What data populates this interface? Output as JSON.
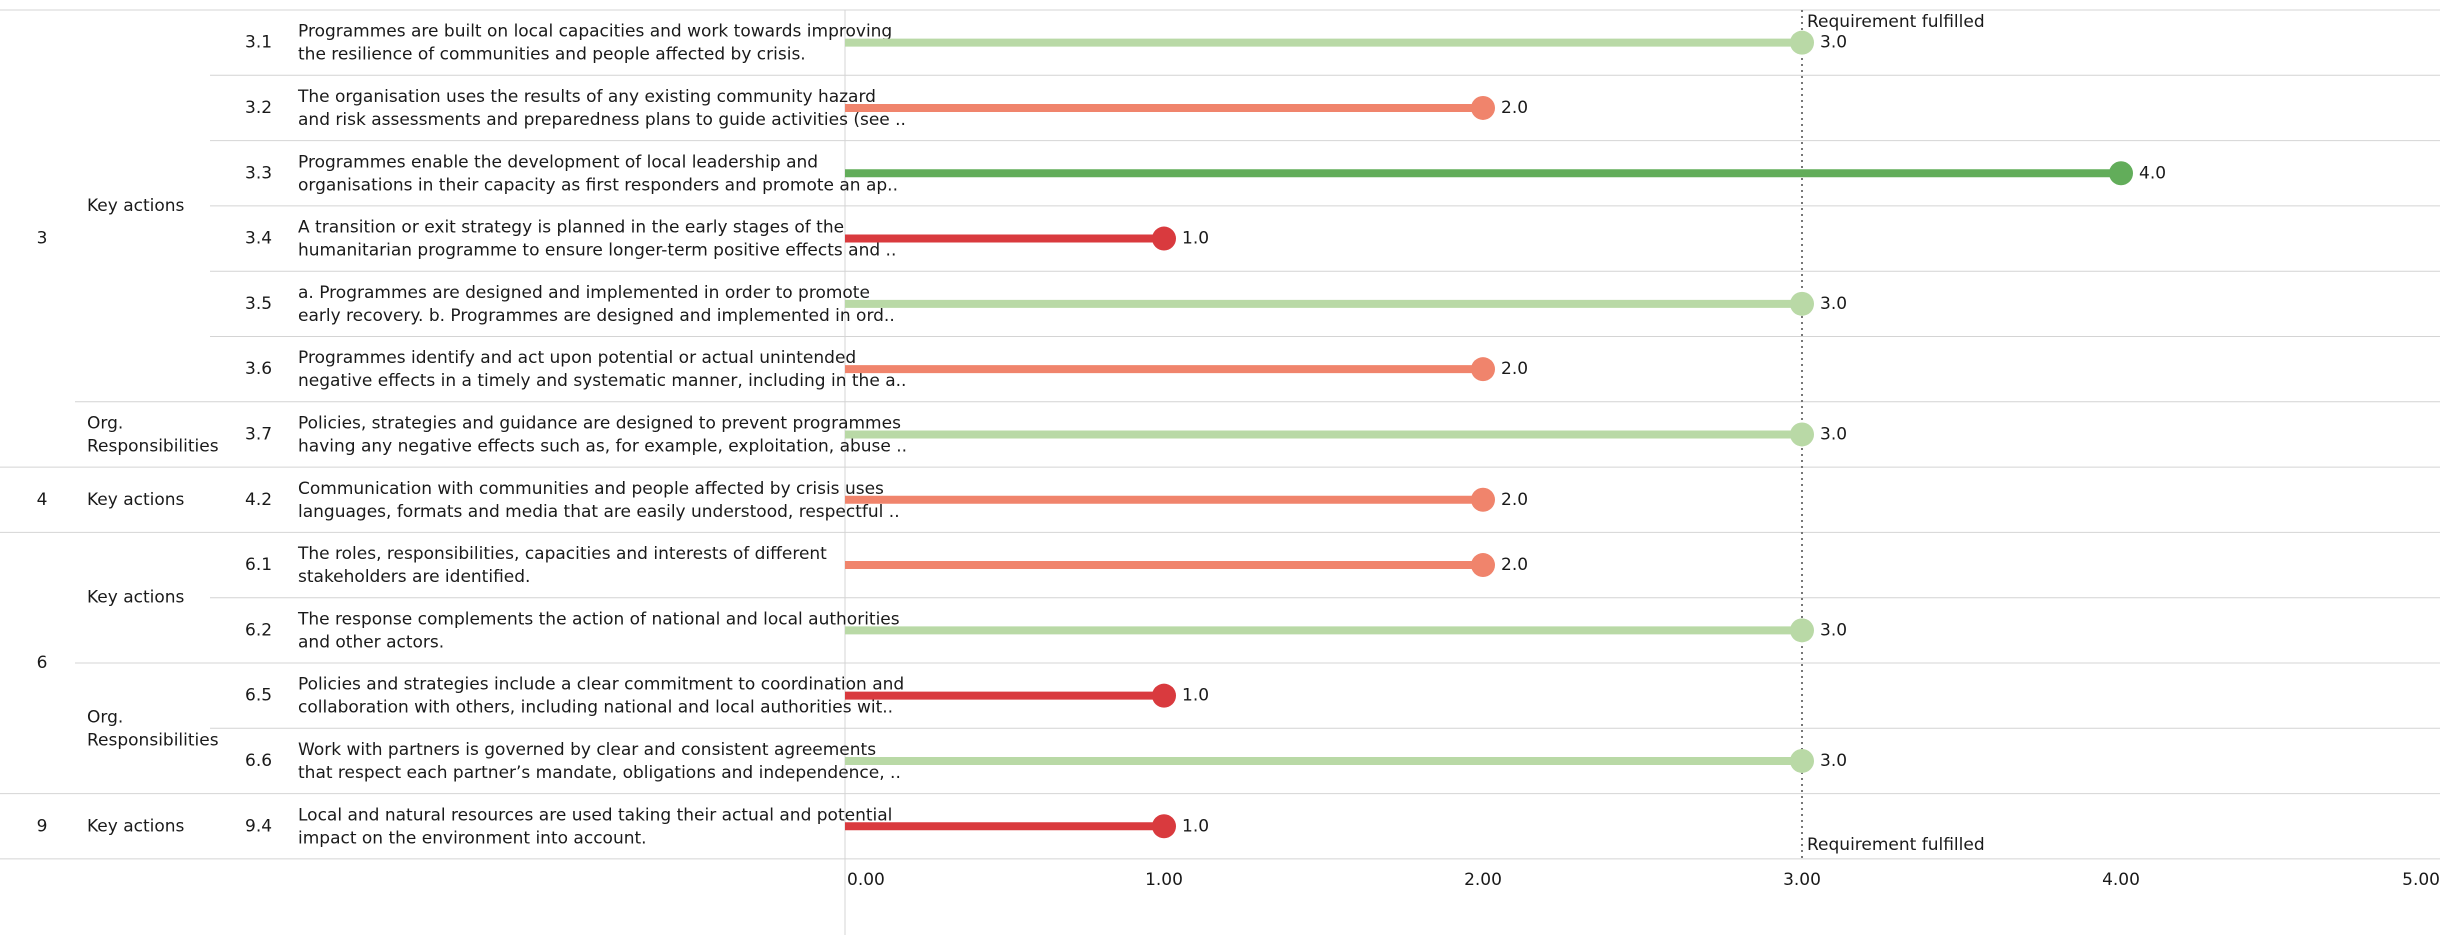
{
  "chart_data": {
    "type": "lollipop",
    "orientation": "horizontal",
    "xlim": [
      0,
      5
    ],
    "x_ticks": [
      "0.00",
      "1.00",
      "2.00",
      "3.00",
      "4.00",
      "5.00"
    ],
    "reference_line": {
      "value": 3,
      "label": "Requirement fulfilled"
    },
    "grid": "row separators",
    "groups": [
      {
        "group": "3",
        "subgroups": [
          {
            "name": "Key actions",
            "rows": [
              0,
              5
            ]
          },
          {
            "name": "Org. Responsibilities",
            "rows": [
              6,
              6
            ]
          }
        ]
      },
      {
        "group": "4",
        "subgroups": [
          {
            "name": "Key actions",
            "rows": [
              7,
              7
            ]
          }
        ]
      },
      {
        "group": "6",
        "subgroups": [
          {
            "name": "Key actions",
            "rows": [
              8,
              9
            ]
          },
          {
            "name": "Org. Responsibilities",
            "rows": [
              10,
              11
            ]
          }
        ]
      },
      {
        "group": "9",
        "subgroups": [
          {
            "name": "Key actions",
            "rows": [
              12,
              12
            ]
          }
        ]
      }
    ],
    "rows": [
      {
        "id": "3.1",
        "text": [
          "Programmes are built on local capacities and work towards improving",
          "the resilience of communities and people affected by crisis."
        ],
        "value": 3.0,
        "value_label": "3.0",
        "color": "#b9d9a6"
      },
      {
        "id": "3.2",
        "text": [
          "The organisation uses the results of any existing community hazard",
          "and risk assessments and preparedness plans to guide activities (see .."
        ],
        "value": 2.0,
        "value_label": "2.0",
        "color": "#f0846c"
      },
      {
        "id": "3.3",
        "text": [
          "Programmes enable the development of local leadership and",
          "organisations in their capacity as first responders and promote an ap.."
        ],
        "value": 4.0,
        "value_label": "4.0",
        "color": "#62ad5a"
      },
      {
        "id": "3.4",
        "text": [
          "A transition or exit strategy is planned in the early stages of the",
          "humanitarian programme to ensure longer-term positive effects and .."
        ],
        "value": 1.0,
        "value_label": "1.0",
        "color": "#d93a3e"
      },
      {
        "id": "3.5",
        "text": [
          "a. Programmes are designed and implemented in order to promote",
          "early recovery. b. Programmes are designed and implemented in ord.."
        ],
        "value": 3.0,
        "value_label": "3.0",
        "color": "#b9d9a6"
      },
      {
        "id": "3.6",
        "text": [
          "Programmes identify and act upon potential or actual unintended",
          "negative effects in a timely and systematic manner, including in the a.."
        ],
        "value": 2.0,
        "value_label": "2.0",
        "color": "#f0846c"
      },
      {
        "id": "3.7",
        "text": [
          "Policies, strategies and guidance are designed to prevent programmes",
          "having any negative effects such as, for example, exploitation, abuse .."
        ],
        "value": 3.0,
        "value_label": "3.0",
        "color": "#b9d9a6"
      },
      {
        "id": "4.2",
        "text": [
          "Communication with communities and people affected by crisis uses",
          "languages, formats and media that are easily understood, respectful .."
        ],
        "value": 2.0,
        "value_label": "2.0",
        "color": "#f0846c"
      },
      {
        "id": "6.1",
        "text": [
          "The roles, responsibilities, capacities and interests of different",
          "stakeholders are identified."
        ],
        "value": 2.0,
        "value_label": "2.0",
        "color": "#f0846c"
      },
      {
        "id": "6.2",
        "text": [
          "The response complements the action of national and local authorities",
          "and other actors."
        ],
        "value": 3.0,
        "value_label": "3.0",
        "color": "#b9d9a6"
      },
      {
        "id": "6.5",
        "text": [
          "Policies and strategies include a clear commitment to coordination and",
          "collaboration with others, including national and local authorities wit.."
        ],
        "value": 1.0,
        "value_label": "1.0",
        "color": "#d93a3e"
      },
      {
        "id": "6.6",
        "text": [
          "Work with partners is governed by clear and consistent agreements",
          "that respect each partner’s mandate, obligations and independence, .."
        ],
        "value": 3.0,
        "value_label": "3.0",
        "color": "#b9d9a6"
      },
      {
        "id": "9.4",
        "text": [
          "Local and natural resources are used taking their actual and potential",
          "impact on the environment into account."
        ],
        "value": 1.0,
        "value_label": "1.0",
        "color": "#d93a3e"
      }
    ]
  }
}
